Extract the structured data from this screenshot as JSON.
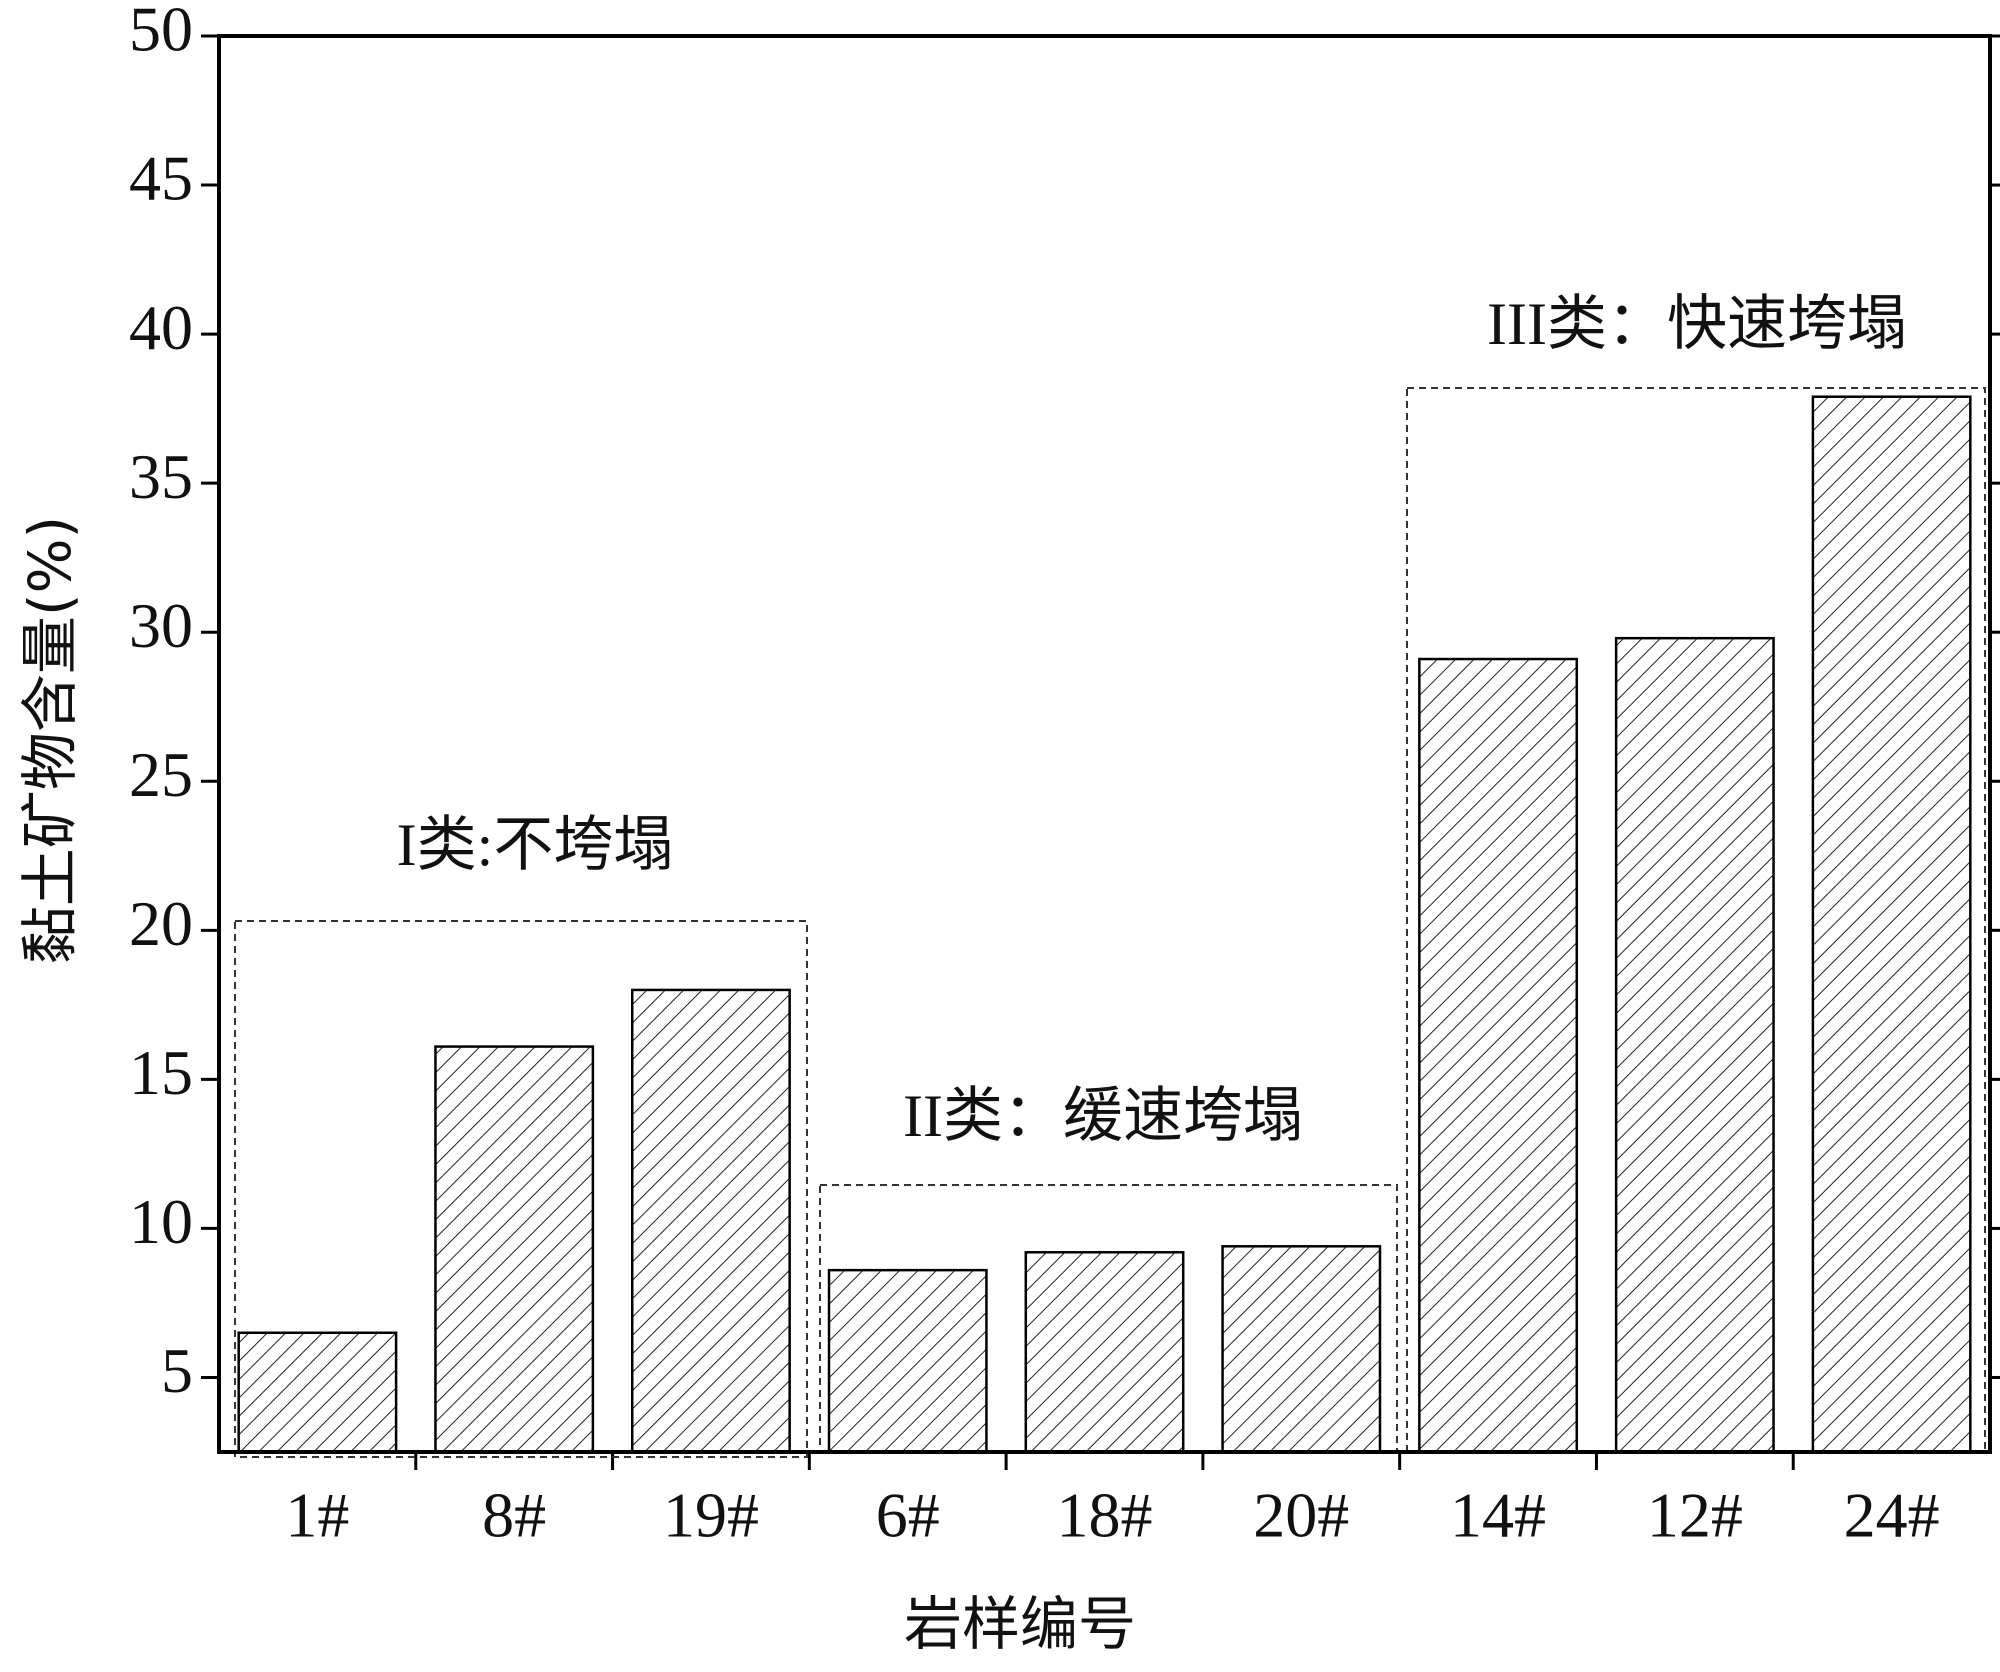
{
  "chart_data": {
    "type": "bar",
    "x_label": "岩样编号",
    "y_label": "黏土矿物含量(%)",
    "categories": [
      "1#",
      "8#",
      "19#",
      "6#",
      "18#",
      "20#",
      "14#",
      "12#",
      "24#"
    ],
    "values": [
      6.5,
      16.1,
      18.0,
      8.6,
      9.2,
      9.4,
      29.1,
      29.8,
      37.9
    ],
    "color": "#ffffff",
    "ylim": [
      2.5,
      50
    ],
    "yticks": [
      5,
      10,
      15,
      20,
      25,
      30,
      35,
      40,
      45,
      50
    ],
    "annotations": [
      "I类:不垮塌",
      "II类：缓速垮塌",
      "III类：快速垮塌"
    ]
  }
}
